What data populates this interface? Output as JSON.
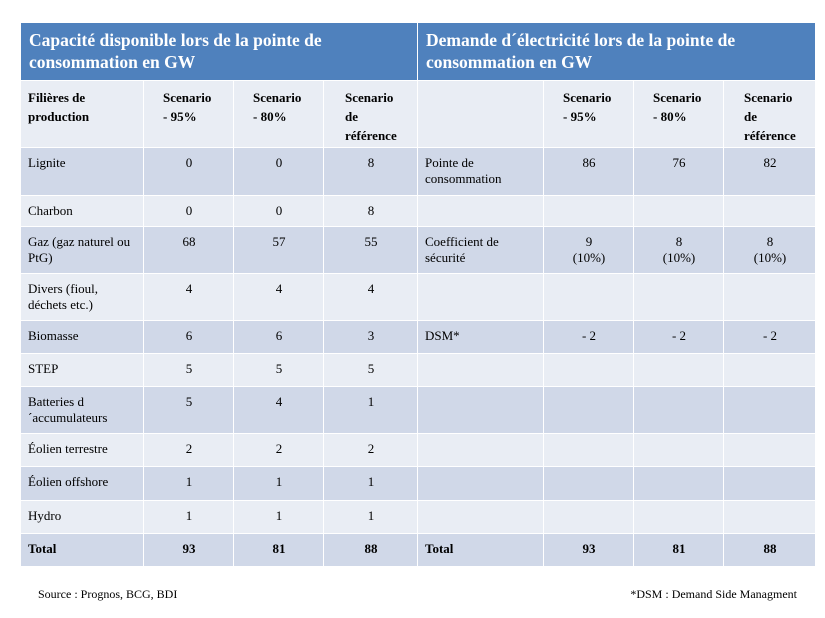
{
  "header": {
    "left_title": "Capacité disponible lors de la pointe de consommation en GW",
    "right_title": "Demande d´électricité lors de la pointe de consommation en GW"
  },
  "columns": {
    "left": [
      "Filières de production",
      "Scenario - 95%",
      "Scenario - 80%",
      "Scenario de référence"
    ],
    "right": [
      "Scenario - 95%",
      "Scenario - 80%",
      "Scenario de référence"
    ]
  },
  "rows": [
    {
      "left": [
        "Lignite",
        0,
        0,
        8
      ],
      "right": [
        "Pointe de consommation",
        86,
        76,
        82
      ]
    },
    {
      "left": [
        "Charbon",
        0,
        0,
        8
      ]
    },
    {
      "left": [
        "Gaz (gaz naturel ou PtG)",
        68,
        57,
        55
      ],
      "right": [
        "Coefficient de sécurité",
        "9\n(10%)",
        "8\n(10%)",
        "8\n(10%)"
      ]
    },
    {
      "left": [
        "Divers (fioul, déchets etc.)",
        4,
        4,
        4
      ]
    },
    {
      "left": [
        "Biomasse",
        6,
        6,
        3
      ],
      "right": [
        "DSM*",
        "- 2",
        "- 2",
        "- 2"
      ]
    },
    {
      "left": [
        "STEP",
        5,
        5,
        5
      ]
    },
    {
      "left": [
        "Batteries d´accumulateurs",
        5,
        4,
        1
      ]
    },
    {
      "left": [
        "Éolien terrestre",
        2,
        2,
        2
      ]
    },
    {
      "left": [
        "Éolien offshore",
        1,
        1,
        1
      ]
    },
    {
      "left": [
        "Hydro",
        1,
        1,
        1
      ]
    },
    {
      "left": [
        "Total",
        93,
        81,
        88
      ],
      "right": [
        "Total",
        93,
        81,
        88
      ]
    }
  ],
  "footer": {
    "source": "Source : Prognos, BCG, BDI",
    "note": "*DSM : Demand Side Managment"
  }
}
